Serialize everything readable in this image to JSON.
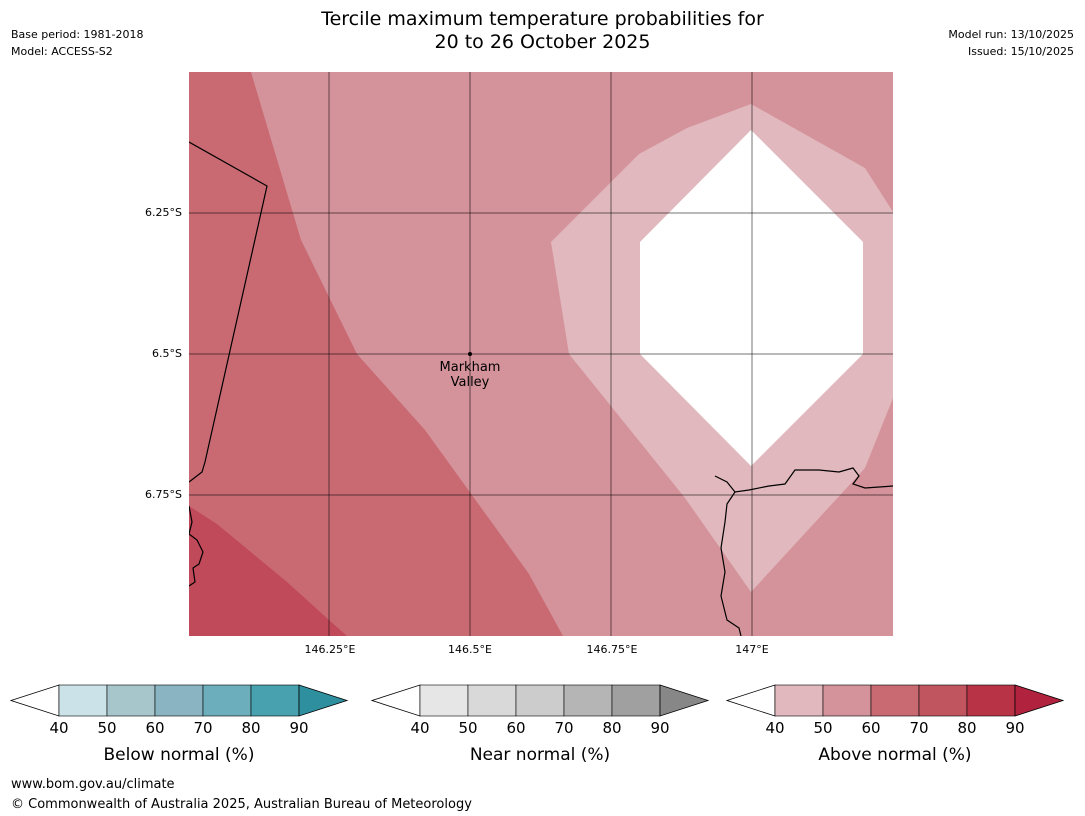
{
  "title_line1": "Tercile maximum temperature probabilities for",
  "title_line2": "20 to 26 October 2025",
  "meta_left": {
    "base_period": "Base period: 1981-2018",
    "model": "Model: ACCESS-S2"
  },
  "meta_right": {
    "model_run": "Model run: 13/10/2025",
    "issued": "Issued: 15/10/2025"
  },
  "lat_labels": [
    "6.25°S",
    "6.5°S",
    "6.75°S"
  ],
  "lon_labels": [
    "146.25°E",
    "146.5°E",
    "146.75°E",
    "147°E"
  ],
  "place": {
    "name_line1": "Markham",
    "name_line2": "Valley"
  },
  "colorbars": [
    {
      "title": "Below normal (%)",
      "ticks": [
        "40",
        "50",
        "60",
        "70",
        "80",
        "90"
      ],
      "colors": [
        "#cbe3e8",
        "#a7c6cc",
        "#8ab4c1",
        "#6caebb",
        "#48a1ae",
        "#2e8f9e"
      ]
    },
    {
      "title": "Near normal (%)",
      "ticks": [
        "40",
        "50",
        "60",
        "70",
        "80",
        "90"
      ],
      "colors": [
        "#e6e6e6",
        "#d9d9d9",
        "#cccccc",
        "#b5b5b5",
        "#a0a0a0",
        "#878787"
      ]
    },
    {
      "title": "Above normal (%)",
      "ticks": [
        "40",
        "50",
        "60",
        "70",
        "80",
        "90"
      ],
      "colors": [
        "#e0b8bd",
        "#d4939a",
        "#c96a73",
        "#c0555f",
        "#b93347",
        "#b0223e"
      ]
    }
  ],
  "map_colors": {
    "above_40_50": "#e0b8bd",
    "above_50_60": "#d4939a",
    "above_60_70": "#c96a73",
    "above_70_80": "#c0495a",
    "neutral": "#ffffff"
  },
  "footer": {
    "website": "www.bom.gov.au/climate",
    "copyright": "© Commonwealth of Australia 2025, Australian Bureau of Meteorology"
  }
}
